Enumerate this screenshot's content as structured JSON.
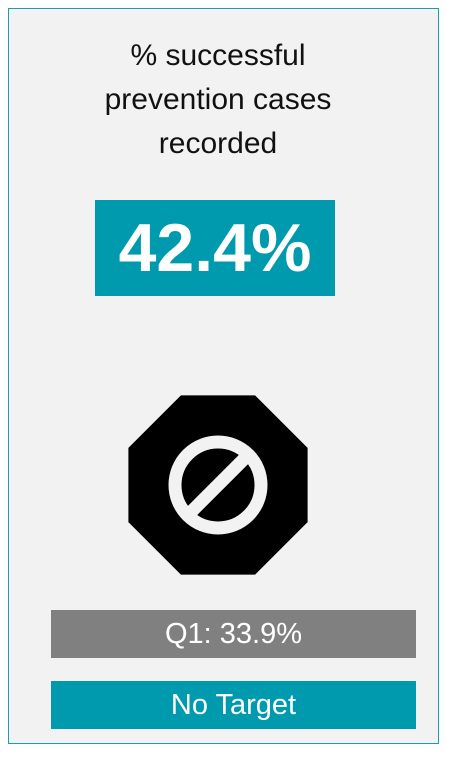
{
  "card": {
    "title": "% successful prevention cases recorded",
    "value": "42.4%",
    "previous": "Q1: 33.9%",
    "target": "No Target"
  }
}
